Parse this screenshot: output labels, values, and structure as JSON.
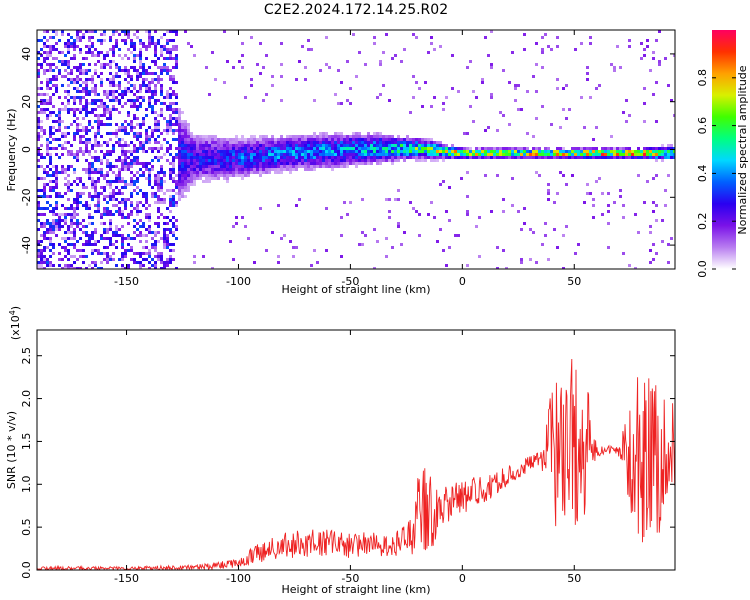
{
  "title": "C2E2.2024.172.14.25.R02",
  "spectrogram": {
    "xlabel": "Height of straight line (km)",
    "ylabel": "Frequency (Hz)",
    "xlim": [
      -190,
      95
    ],
    "ylim": [
      -50,
      50
    ],
    "xticks": [
      -150,
      -100,
      -50,
      0,
      50
    ],
    "yticks": [
      40,
      20,
      0,
      -20,
      -40
    ],
    "colorbar": {
      "label": "Normalized spectral amplitude",
      "range": [
        0.0,
        1.0
      ],
      "ticks": [
        "0.0",
        "0.2",
        "0.4",
        "0.6",
        "0.8"
      ],
      "colormap": [
        "#ffffff",
        "#b87cf0",
        "#7a12e8",
        "#2a00f0",
        "#0060ff",
        "#00d8ff",
        "#00ff80",
        "#40ff00",
        "#d8f000",
        "#ffa000",
        "#ff3000",
        "#ff0060"
      ]
    }
  },
  "chart_data": [
    {
      "type": "heatmap",
      "title": "C2E2.2024.172.14.25.R02",
      "xlabel": "Height of straight line (km)",
      "ylabel": "Frequency (Hz)",
      "xlim": [
        -190,
        95
      ],
      "ylim": [
        -50,
        50
      ],
      "colorbar_label": "Normalized spectral amplitude",
      "colorbar_range": [
        0.0,
        1.0
      ],
      "ridge": {
        "x": [
          -190,
          -150,
          -120,
          -100,
          -80,
          -60,
          -40,
          -20,
          0,
          20,
          40,
          60,
          80,
          95
        ],
        "center_freq": [
          0,
          0,
          -3,
          -3,
          -1,
          0,
          1,
          1,
          -1,
          -1,
          -1,
          -1,
          -1,
          -1
        ],
        "half_width": [
          50,
          50,
          10,
          8,
          7,
          7,
          6,
          4,
          2,
          2,
          2,
          2,
          2,
          3
        ],
        "amplitude": [
          0.25,
          0.28,
          0.3,
          0.35,
          0.4,
          0.42,
          0.48,
          0.6,
          0.8,
          0.75,
          0.78,
          0.85,
          0.85,
          0.6
        ]
      }
    },
    {
      "type": "line",
      "xlabel": "Height of straight line (km)",
      "ylabel": "SNR (10 * v/v)",
      "y_multiplier": "(x10^4)",
      "xlim": [
        -190,
        95
      ],
      "ylim": [
        0,
        2.8
      ],
      "grid": false,
      "color": "#ee2222",
      "series": [
        {
          "x": [
            -190,
            -150,
            -120,
            -110,
            -100,
            -95,
            -90,
            -85,
            -80,
            -75,
            -70,
            -65,
            -60,
            -55,
            -50,
            -45,
            -40,
            -35,
            -30,
            -25,
            -22,
            -20,
            -18,
            -15,
            -12,
            -10,
            -5,
            0,
            5,
            10,
            15,
            20,
            25,
            30,
            35,
            38,
            40,
            45,
            50,
            55,
            60,
            65,
            70,
            75,
            78,
            80,
            85,
            90,
            95
          ],
          "y": [
            0.02,
            0.02,
            0.03,
            0.05,
            0.08,
            0.15,
            0.2,
            0.25,
            0.28,
            0.3,
            0.32,
            0.3,
            0.32,
            0.3,
            0.28,
            0.3,
            0.3,
            0.28,
            0.3,
            0.35,
            0.45,
            0.7,
            0.75,
            0.7,
            0.65,
            0.75,
            0.8,
            0.85,
            0.9,
            0.95,
            1.0,
            1.1,
            1.15,
            1.25,
            1.3,
            1.35,
            1.4,
            1.45,
            1.5,
            1.4,
            1.38,
            1.4,
            1.38,
            1.4,
            1.4,
            1.3,
            1.35,
            1.3,
            1.4
          ],
          "noise": [
            0.02,
            0.02,
            0.03,
            0.04,
            0.05,
            0.1,
            0.12,
            0.14,
            0.15,
            0.16,
            0.17,
            0.16,
            0.16,
            0.15,
            0.15,
            0.14,
            0.14,
            0.12,
            0.14,
            0.18,
            0.3,
            0.45,
            0.55,
            0.45,
            0.35,
            0.25,
            0.22,
            0.2,
            0.18,
            0.16,
            0.14,
            0.12,
            0.1,
            0.08,
            0.08,
            0.4,
            0.9,
            0.95,
            1.0,
            0.9,
            0.06,
            0.05,
            0.06,
            0.7,
            0.95,
            1.0,
            1.0,
            0.9,
            0.8
          ]
        }
      ]
    }
  ],
  "snr": {
    "xlabel": "Height of straight line (km)",
    "ylabel": "SNR (10 * v/v)",
    "multiplier_base": "(x10",
    "multiplier_exp": "4",
    "multiplier_close": ")",
    "xticks": [
      -150,
      -100,
      -50,
      0,
      50
    ],
    "yticks": [
      "0.0",
      "0.5",
      "1.0",
      "1.5",
      "2.0",
      "2.5"
    ]
  }
}
